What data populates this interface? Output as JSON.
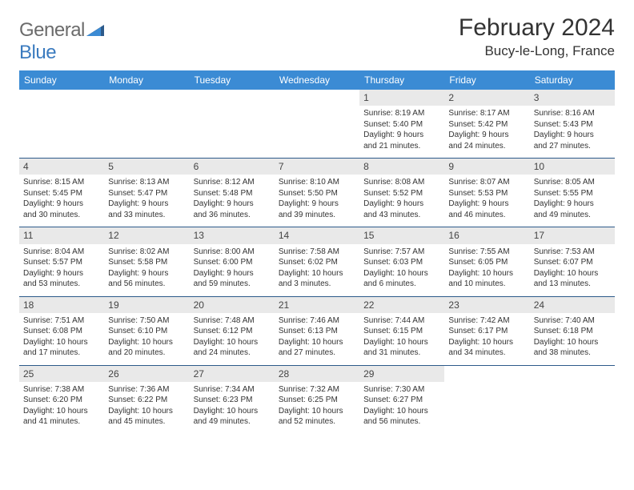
{
  "logo": {
    "part1": "General",
    "part2": "Blue"
  },
  "title": "February 2024",
  "location": "Bucy-le-Long, France",
  "colors": {
    "header_bg": "#3b8bd4",
    "header_text": "#ffffff",
    "daynum_bg": "#e9e9e9",
    "row_border": "#2d5a8a",
    "logo_gray": "#6b6b6b",
    "logo_blue": "#3b7bbf"
  },
  "weekdays": [
    "Sunday",
    "Monday",
    "Tuesday",
    "Wednesday",
    "Thursday",
    "Friday",
    "Saturday"
  ],
  "weeks": [
    [
      null,
      null,
      null,
      null,
      {
        "n": "1",
        "sr": "Sunrise: 8:19 AM",
        "ss": "Sunset: 5:40 PM",
        "d1": "Daylight: 9 hours",
        "d2": "and 21 minutes."
      },
      {
        "n": "2",
        "sr": "Sunrise: 8:17 AM",
        "ss": "Sunset: 5:42 PM",
        "d1": "Daylight: 9 hours",
        "d2": "and 24 minutes."
      },
      {
        "n": "3",
        "sr": "Sunrise: 8:16 AM",
        "ss": "Sunset: 5:43 PM",
        "d1": "Daylight: 9 hours",
        "d2": "and 27 minutes."
      }
    ],
    [
      {
        "n": "4",
        "sr": "Sunrise: 8:15 AM",
        "ss": "Sunset: 5:45 PM",
        "d1": "Daylight: 9 hours",
        "d2": "and 30 minutes."
      },
      {
        "n": "5",
        "sr": "Sunrise: 8:13 AM",
        "ss": "Sunset: 5:47 PM",
        "d1": "Daylight: 9 hours",
        "d2": "and 33 minutes."
      },
      {
        "n": "6",
        "sr": "Sunrise: 8:12 AM",
        "ss": "Sunset: 5:48 PM",
        "d1": "Daylight: 9 hours",
        "d2": "and 36 minutes."
      },
      {
        "n": "7",
        "sr": "Sunrise: 8:10 AM",
        "ss": "Sunset: 5:50 PM",
        "d1": "Daylight: 9 hours",
        "d2": "and 39 minutes."
      },
      {
        "n": "8",
        "sr": "Sunrise: 8:08 AM",
        "ss": "Sunset: 5:52 PM",
        "d1": "Daylight: 9 hours",
        "d2": "and 43 minutes."
      },
      {
        "n": "9",
        "sr": "Sunrise: 8:07 AM",
        "ss": "Sunset: 5:53 PM",
        "d1": "Daylight: 9 hours",
        "d2": "and 46 minutes."
      },
      {
        "n": "10",
        "sr": "Sunrise: 8:05 AM",
        "ss": "Sunset: 5:55 PM",
        "d1": "Daylight: 9 hours",
        "d2": "and 49 minutes."
      }
    ],
    [
      {
        "n": "11",
        "sr": "Sunrise: 8:04 AM",
        "ss": "Sunset: 5:57 PM",
        "d1": "Daylight: 9 hours",
        "d2": "and 53 minutes."
      },
      {
        "n": "12",
        "sr": "Sunrise: 8:02 AM",
        "ss": "Sunset: 5:58 PM",
        "d1": "Daylight: 9 hours",
        "d2": "and 56 minutes."
      },
      {
        "n": "13",
        "sr": "Sunrise: 8:00 AM",
        "ss": "Sunset: 6:00 PM",
        "d1": "Daylight: 9 hours",
        "d2": "and 59 minutes."
      },
      {
        "n": "14",
        "sr": "Sunrise: 7:58 AM",
        "ss": "Sunset: 6:02 PM",
        "d1": "Daylight: 10 hours",
        "d2": "and 3 minutes."
      },
      {
        "n": "15",
        "sr": "Sunrise: 7:57 AM",
        "ss": "Sunset: 6:03 PM",
        "d1": "Daylight: 10 hours",
        "d2": "and 6 minutes."
      },
      {
        "n": "16",
        "sr": "Sunrise: 7:55 AM",
        "ss": "Sunset: 6:05 PM",
        "d1": "Daylight: 10 hours",
        "d2": "and 10 minutes."
      },
      {
        "n": "17",
        "sr": "Sunrise: 7:53 AM",
        "ss": "Sunset: 6:07 PM",
        "d1": "Daylight: 10 hours",
        "d2": "and 13 minutes."
      }
    ],
    [
      {
        "n": "18",
        "sr": "Sunrise: 7:51 AM",
        "ss": "Sunset: 6:08 PM",
        "d1": "Daylight: 10 hours",
        "d2": "and 17 minutes."
      },
      {
        "n": "19",
        "sr": "Sunrise: 7:50 AM",
        "ss": "Sunset: 6:10 PM",
        "d1": "Daylight: 10 hours",
        "d2": "and 20 minutes."
      },
      {
        "n": "20",
        "sr": "Sunrise: 7:48 AM",
        "ss": "Sunset: 6:12 PM",
        "d1": "Daylight: 10 hours",
        "d2": "and 24 minutes."
      },
      {
        "n": "21",
        "sr": "Sunrise: 7:46 AM",
        "ss": "Sunset: 6:13 PM",
        "d1": "Daylight: 10 hours",
        "d2": "and 27 minutes."
      },
      {
        "n": "22",
        "sr": "Sunrise: 7:44 AM",
        "ss": "Sunset: 6:15 PM",
        "d1": "Daylight: 10 hours",
        "d2": "and 31 minutes."
      },
      {
        "n": "23",
        "sr": "Sunrise: 7:42 AM",
        "ss": "Sunset: 6:17 PM",
        "d1": "Daylight: 10 hours",
        "d2": "and 34 minutes."
      },
      {
        "n": "24",
        "sr": "Sunrise: 7:40 AM",
        "ss": "Sunset: 6:18 PM",
        "d1": "Daylight: 10 hours",
        "d2": "and 38 minutes."
      }
    ],
    [
      {
        "n": "25",
        "sr": "Sunrise: 7:38 AM",
        "ss": "Sunset: 6:20 PM",
        "d1": "Daylight: 10 hours",
        "d2": "and 41 minutes."
      },
      {
        "n": "26",
        "sr": "Sunrise: 7:36 AM",
        "ss": "Sunset: 6:22 PM",
        "d1": "Daylight: 10 hours",
        "d2": "and 45 minutes."
      },
      {
        "n": "27",
        "sr": "Sunrise: 7:34 AM",
        "ss": "Sunset: 6:23 PM",
        "d1": "Daylight: 10 hours",
        "d2": "and 49 minutes."
      },
      {
        "n": "28",
        "sr": "Sunrise: 7:32 AM",
        "ss": "Sunset: 6:25 PM",
        "d1": "Daylight: 10 hours",
        "d2": "and 52 minutes."
      },
      {
        "n": "29",
        "sr": "Sunrise: 7:30 AM",
        "ss": "Sunset: 6:27 PM",
        "d1": "Daylight: 10 hours",
        "d2": "and 56 minutes."
      },
      null,
      null
    ]
  ]
}
